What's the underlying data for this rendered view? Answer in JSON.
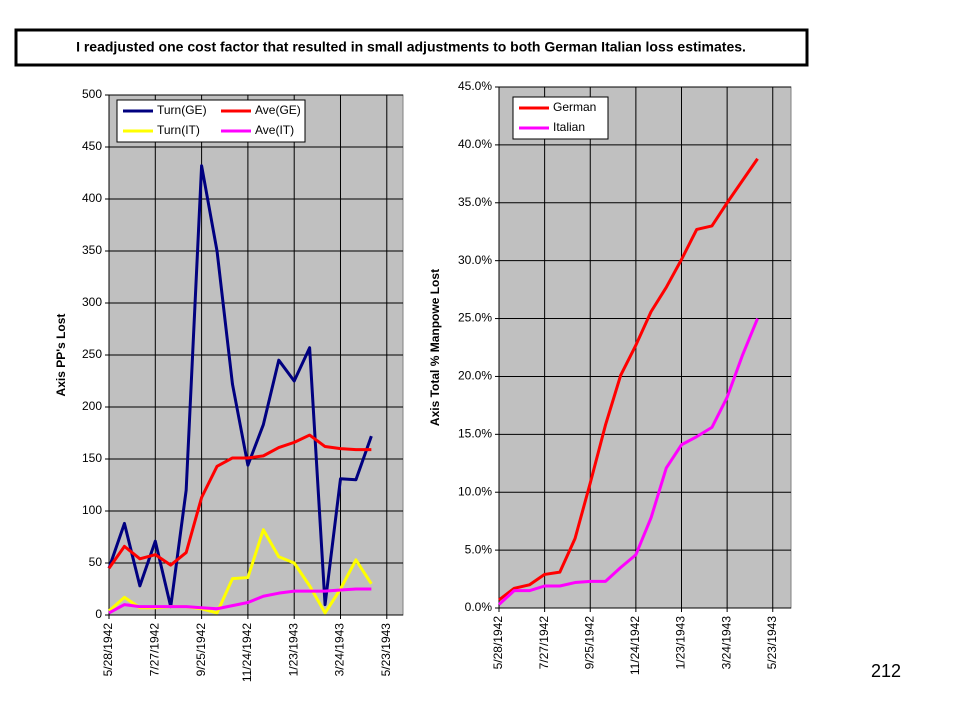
{
  "header": {
    "title": "I readjusted one cost factor that resulted in small adjustments to both German Italian loss estimates."
  },
  "page_number": "212",
  "chart_data": [
    {
      "type": "line",
      "y_label": "Axis PP's Lost",
      "x": [
        "1942-05-28",
        "1942-06-17",
        "1942-07-07",
        "1942-07-27",
        "1942-08-16",
        "1942-09-05",
        "1942-09-25",
        "1942-10-15",
        "1942-11-04",
        "1942-11-24",
        "1942-12-14",
        "1943-01-03",
        "1943-01-23",
        "1943-02-12",
        "1943-03-04",
        "1943-03-24",
        "1943-04-13",
        "1943-05-03"
      ],
      "series": [
        {
          "name": "Turn(GE)",
          "color": "#000080",
          "values": [
            45,
            88,
            28,
            71,
            8,
            120,
            432,
            350,
            222,
            144,
            183,
            245,
            225,
            257,
            10,
            131,
            130,
            172
          ]
        },
        {
          "name": "Ave(GE)",
          "color": "#ff0000",
          "values": [
            45,
            66,
            54,
            58,
            48,
            60,
            113,
            143,
            151,
            151,
            153,
            161,
            166,
            173,
            162,
            160,
            159,
            159
          ]
        },
        {
          "name": "Turn(IT)",
          "color": "#ffff00",
          "values": [
            4,
            17,
            7,
            7,
            8,
            8,
            6,
            2,
            35,
            36,
            82,
            56,
            50,
            28,
            2,
            25,
            53,
            30
          ]
        },
        {
          "name": "Ave(IT)",
          "color": "#ff00ff",
          "values": [
            2,
            10,
            8,
            8,
            8,
            8,
            7,
            6,
            9,
            12,
            18,
            21,
            23,
            23,
            23,
            24,
            25,
            25
          ]
        }
      ],
      "xlim": [
        "1942-05-28",
        "1943-06-13"
      ],
      "xticks": [
        {
          "value": "1942-05-28",
          "label": "5/28/1942"
        },
        {
          "value": "1942-07-27",
          "label": "7/27/1942"
        },
        {
          "value": "1942-09-25",
          "label": "9/25/1942"
        },
        {
          "value": "1942-11-24",
          "label": "11/24/1942"
        },
        {
          "value": "1943-01-23",
          "label": "1/23/1943"
        },
        {
          "value": "1943-03-24",
          "label": "3/24/1943"
        },
        {
          "value": "1943-05-23",
          "label": "5/23/1943"
        }
      ],
      "ylim": [
        0,
        500
      ],
      "yticks": [
        0,
        50,
        100,
        150,
        200,
        250,
        300,
        350,
        400,
        450,
        500
      ],
      "grid": true,
      "legend": "upper left"
    },
    {
      "type": "line",
      "y_label": "Axis Total % Manpowe Lost",
      "x": [
        "1942-05-28",
        "1942-06-17",
        "1942-07-07",
        "1942-07-27",
        "1942-08-16",
        "1942-09-05",
        "1942-09-25",
        "1942-10-15",
        "1942-11-04",
        "1942-11-24",
        "1942-12-14",
        "1943-01-03",
        "1943-01-23",
        "1943-02-12",
        "1943-03-04",
        "1943-03-24",
        "1943-04-13",
        "1943-05-03"
      ],
      "series": [
        {
          "name": "German",
          "color": "#ff0000",
          "values": [
            0.7,
            1.7,
            2.0,
            2.9,
            3.1,
            6.0,
            10.8,
            15.8,
            20.1,
            22.7,
            25.6,
            27.7,
            30.1,
            32.7,
            33.0,
            35.0,
            36.9,
            38.8
          ]
        },
        {
          "name": "Italian",
          "color": "#ff00ff",
          "values": [
            0.3,
            1.5,
            1.5,
            1.9,
            1.9,
            2.2,
            2.3,
            2.3,
            3.5,
            4.6,
            7.8,
            12.1,
            14.1,
            14.8,
            15.6,
            18.2,
            21.8,
            25.0
          ]
        }
      ],
      "xlim": [
        "1942-05-28",
        "1943-06-16"
      ],
      "xticks": [
        {
          "value": "1942-05-28",
          "label": "5/28/1942"
        },
        {
          "value": "1942-07-27",
          "label": "7/27/1942"
        },
        {
          "value": "1942-09-25",
          "label": "9/25/1942"
        },
        {
          "value": "1942-11-24",
          "label": "11/24/1942"
        },
        {
          "value": "1943-01-23",
          "label": "1/23/1943"
        },
        {
          "value": "1943-03-24",
          "label": "3/24/1943"
        },
        {
          "value": "1943-05-23",
          "label": "5/23/1943"
        }
      ],
      "ylim": [
        0,
        45
      ],
      "yticks": [
        {
          "value": 0,
          "label": "0.0%"
        },
        {
          "value": 5,
          "label": "5.0%"
        },
        {
          "value": 10,
          "label": "10.0%"
        },
        {
          "value": 15,
          "label": "15.0%"
        },
        {
          "value": 20,
          "label": "20.0%"
        },
        {
          "value": 25,
          "label": "25.0%"
        },
        {
          "value": 30,
          "label": "30.0%"
        },
        {
          "value": 35,
          "label": "35.0%"
        },
        {
          "value": 40,
          "label": "40.0%"
        },
        {
          "value": 45,
          "label": "45.0%"
        }
      ],
      "grid": true,
      "legend": "upper left"
    }
  ]
}
